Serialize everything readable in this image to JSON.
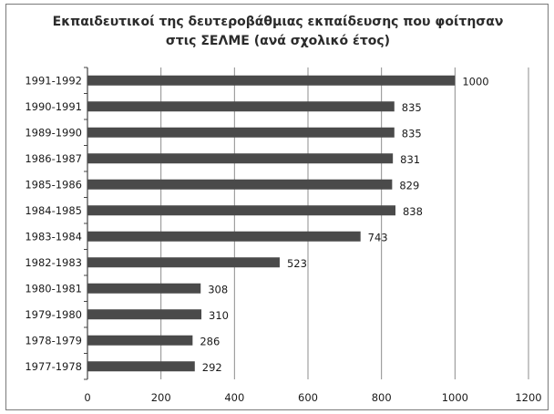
{
  "chart_data": {
    "type": "bar",
    "orientation": "horizontal",
    "title_lines": [
      "Εκπαιδευτικοί της δευτεροβάθμιας εκπαίδευσης που φοίτησαν",
      "στις ΣΕΛΜΕ (ανά σχολικό έτος)"
    ],
    "categories": [
      "1991-1992",
      "1990-1991",
      "1989-1990",
      "1986-1987",
      "1985-1986",
      "1984-1985",
      "1983-1984",
      "1982-1983",
      "1980-1981",
      "1979-1980",
      "1978-1979",
      "1977-1978"
    ],
    "values": [
      1000,
      835,
      835,
      831,
      829,
      838,
      743,
      523,
      308,
      310,
      286,
      292
    ],
    "data_labels": [
      "1000",
      "835",
      "835",
      "831",
      "829",
      "838",
      "743",
      "523",
      "308",
      "310",
      "286",
      "292"
    ],
    "x_ticks": [
      0,
      200,
      400,
      600,
      800,
      1000,
      1200
    ],
    "xlim": [
      0,
      1200
    ],
    "grid": "vertical",
    "colors": {
      "bar": "#4a4a4a",
      "grid": "#8c8c8c"
    }
  }
}
